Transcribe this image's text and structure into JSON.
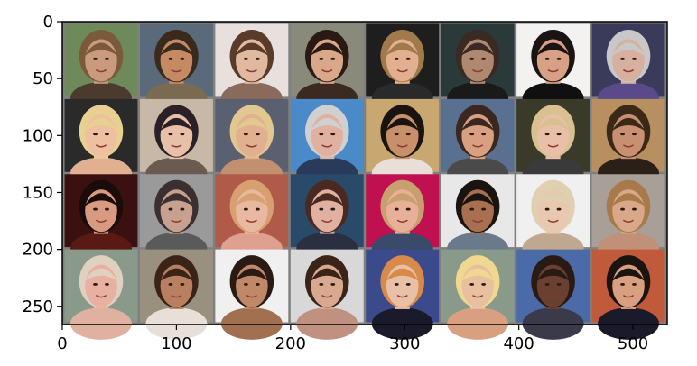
{
  "chart_data": {
    "type": "image-grid",
    "title": "",
    "xlabel": "",
    "ylabel": "",
    "xlim": [
      0,
      530
    ],
    "ylim": [
      266,
      0
    ],
    "xticks": [
      0,
      100,
      200,
      300,
      400,
      500
    ],
    "yticks": [
      0,
      50,
      100,
      150,
      200,
      250
    ],
    "grid": false,
    "rows": 4,
    "cols": 8,
    "cell_size": 64,
    "padding": 2,
    "pad_color": "#808080",
    "cells": [
      {
        "row": 0,
        "col": 0,
        "bg": "#6f8a5a",
        "skin": "#c99a7c",
        "hair": "#7a5a3a",
        "cloth": "#4a3b2e"
      },
      {
        "row": 0,
        "col": 1,
        "bg": "#5a6a7a",
        "skin": "#c58a62",
        "hair": "#3a2a1e",
        "cloth": "#7a6a52"
      },
      {
        "row": 0,
        "col": 2,
        "bg": "#e8e0dc",
        "skin": "#e1b8a0",
        "hair": "#5a3a28",
        "cloth": "#8a6a5a"
      },
      {
        "row": 0,
        "col": 3,
        "bg": "#8a8a7a",
        "skin": "#d8a888",
        "hair": "#2a1a14",
        "cloth": "#3a2a22"
      },
      {
        "row": 0,
        "col": 4,
        "bg": "#1e1e1e",
        "skin": "#e2b090",
        "hair": "#a07a4a",
        "cloth": "#2a2a2a"
      },
      {
        "row": 0,
        "col": 5,
        "bg": "#2a3a3a",
        "skin": "#b08870",
        "hair": "#3a2a24",
        "cloth": "#1a1a1a"
      },
      {
        "row": 0,
        "col": 6,
        "bg": "#f4f2f0",
        "skin": "#d8a084",
        "hair": "#1a1412",
        "cloth": "#101010"
      },
      {
        "row": 0,
        "col": 7,
        "bg": "#3a3a5a",
        "skin": "#d8b0a0",
        "hair": "#c8c8c8",
        "cloth": "#5a4a8a"
      },
      {
        "row": 1,
        "col": 0,
        "bg": "#2a2a2a",
        "skin": "#eec0a0",
        "hair": "#e8d090",
        "cloth": "#e0b090"
      },
      {
        "row": 1,
        "col": 1,
        "bg": "#c8b8a8",
        "skin": "#e8c0a8",
        "hair": "#2a2028",
        "cloth": "#6a5a50"
      },
      {
        "row": 1,
        "col": 2,
        "bg": "#5a6070",
        "skin": "#e0b090",
        "hair": "#e0c890",
        "cloth": "#c09070"
      },
      {
        "row": 1,
        "col": 3,
        "bg": "#4a8ac8",
        "skin": "#e0b0a0",
        "hair": "#d0d0d0",
        "cloth": "#2a3a5a"
      },
      {
        "row": 1,
        "col": 4,
        "bg": "#c8a870",
        "skin": "#c8906a",
        "hair": "#1a1410",
        "cloth": "#e8e0d8"
      },
      {
        "row": 1,
        "col": 5,
        "bg": "#5a7090",
        "skin": "#d8a080",
        "hair": "#3a2820",
        "cloth": "#4a4a4a"
      },
      {
        "row": 1,
        "col": 6,
        "bg": "#3a3a2a",
        "skin": "#e8c0a8",
        "hair": "#d8c090",
        "cloth": "#3a3a3a"
      },
      {
        "row": 1,
        "col": 7,
        "bg": "#b89060",
        "skin": "#c89070",
        "hair": "#3a2818",
        "cloth": "#2a2018"
      },
      {
        "row": 2,
        "col": 0,
        "bg": "#3a1010",
        "skin": "#d89a80",
        "hair": "#1a0c0a",
        "cloth": "#5a1a14"
      },
      {
        "row": 2,
        "col": 1,
        "bg": "#9a9a9a",
        "skin": "#c8a090",
        "hair": "#3a3030",
        "cloth": "#5a5a5a"
      },
      {
        "row": 2,
        "col": 2,
        "bg": "#b05a4a",
        "skin": "#e8b8a0",
        "hair": "#d8a070",
        "cloth": "#e0a090"
      },
      {
        "row": 2,
        "col": 3,
        "bg": "#2a4a6a",
        "skin": "#e0b0a0",
        "hair": "#4a2a20",
        "cloth": "#2a3040"
      },
      {
        "row": 2,
        "col": 4,
        "bg": "#c01050",
        "skin": "#e8b098",
        "hair": "#c8a070",
        "cloth": "#3a4a6a"
      },
      {
        "row": 2,
        "col": 5,
        "bg": "#e8e8e8",
        "skin": "#a87050",
        "hair": "#1a1410",
        "cloth": "#6a7a8a"
      },
      {
        "row": 2,
        "col": 6,
        "bg": "#f0f0f0",
        "skin": "#e8c8b0",
        "hair": "#e0d0b0",
        "cloth": "#c0a890"
      },
      {
        "row": 2,
        "col": 7,
        "bg": "#a8a098",
        "skin": "#d8a888",
        "hair": "#a87a4a",
        "cloth": "#c09078"
      },
      {
        "row": 3,
        "col": 0,
        "bg": "#8a9a8a",
        "skin": "#e8b0a0",
        "hair": "#e0d0c0",
        "cloth": "#e0b0a0"
      },
      {
        "row": 3,
        "col": 1,
        "bg": "#9a9080",
        "skin": "#b88060",
        "hair": "#3a2418",
        "cloth": "#e8e0d8"
      },
      {
        "row": 3,
        "col": 2,
        "bg": "#f0f0f0",
        "skin": "#c08868",
        "hair": "#2a1a14",
        "cloth": "#a07050"
      },
      {
        "row": 3,
        "col": 3,
        "bg": "#d8d8d8",
        "skin": "#d8a890",
        "hair": "#3a2418",
        "cloth": "#c09080"
      },
      {
        "row": 3,
        "col": 4,
        "bg": "#3a4a8a",
        "skin": "#e8c0a8",
        "hair": "#d88a4a",
        "cloth": "#1a1a2a"
      },
      {
        "row": 3,
        "col": 5,
        "bg": "#8a9a8a",
        "skin": "#e8c0a0",
        "hair": "#f0d890",
        "cloth": "#d8a080"
      },
      {
        "row": 3,
        "col": 6,
        "bg": "#4a6aa8",
        "skin": "#6a4030",
        "hair": "#2a1a14",
        "cloth": "#3a3a4a"
      },
      {
        "row": 3,
        "col": 7,
        "bg": "#c05a3a",
        "skin": "#d8a080",
        "hair": "#1a1410",
        "cloth": "#1a1a2a"
      }
    ]
  }
}
